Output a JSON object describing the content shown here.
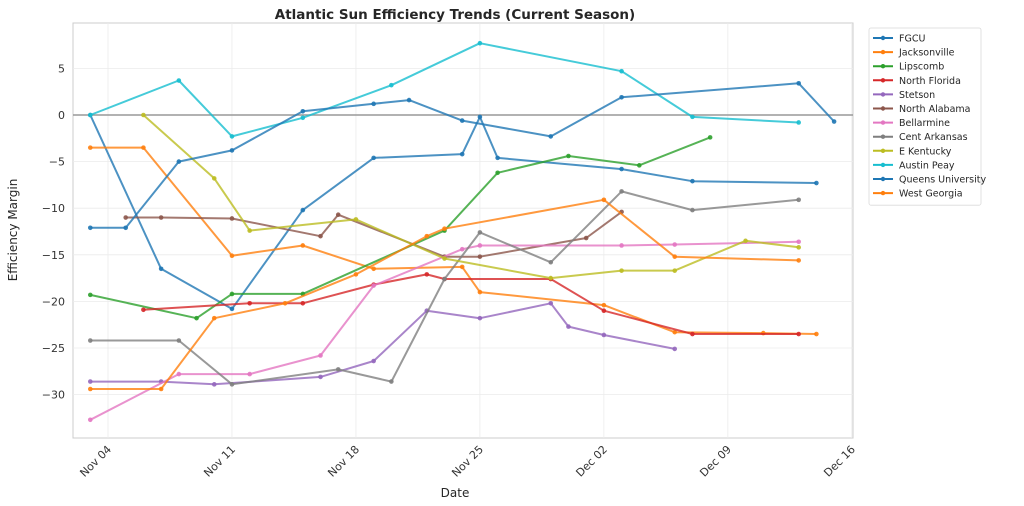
{
  "chart_data": {
    "type": "line",
    "title": "Atlantic Sun Efficiency Trends (Current Season)",
    "xlabel": "Date",
    "ylabel": "Efficiency Margin",
    "x_unit": "days offset from Nov 04",
    "xlim": [
      -2,
      41.8
    ],
    "ylim": [
      -34.5,
      9.9
    ],
    "x_ticks": [
      {
        "pos": 0,
        "label": "Nov 04"
      },
      {
        "pos": 7,
        "label": "Nov 11"
      },
      {
        "pos": 14,
        "label": "Nov 18"
      },
      {
        "pos": 21,
        "label": "Nov 25"
      },
      {
        "pos": 28,
        "label": "Dec 02"
      },
      {
        "pos": 35,
        "label": "Dec 09"
      },
      {
        "pos": 42,
        "label": "Dec 16"
      }
    ],
    "y_ticks": [
      5,
      0,
      -5,
      -10,
      -15,
      -20,
      -25,
      -30
    ],
    "y_tick_labels": [
      "5",
      "0",
      "−5",
      "−10",
      "−15",
      "−20",
      "−25",
      "−30"
    ],
    "reference_line": 0,
    "grid": true,
    "legend_position": "outside-top-right",
    "series": [
      {
        "name": "FGCU",
        "color": "#1f77b4",
        "points": [
          [
            -1,
            0
          ],
          [
            3,
            -16.5
          ],
          [
            7,
            -20.8
          ],
          [
            11,
            -10.2
          ],
          [
            15,
            -4.6
          ],
          [
            20,
            -4.2
          ],
          [
            21,
            -0.2
          ],
          [
            22,
            -4.6
          ],
          [
            29,
            -5.8
          ],
          [
            33,
            -7.1
          ],
          [
            40,
            -7.3
          ]
        ]
      },
      {
        "name": "Jacksonville",
        "color": "#ff7f0e",
        "points": [
          [
            -1,
            -3.5
          ],
          [
            2,
            -3.5
          ],
          [
            7,
            -15.1
          ],
          [
            11,
            -14
          ],
          [
            15,
            -16.5
          ],
          [
            20,
            -16.3
          ],
          [
            21,
            -19
          ],
          [
            28,
            -20.4
          ],
          [
            32,
            -23.3
          ],
          [
            37,
            -23.4
          ],
          [
            40,
            -23.5
          ]
        ]
      },
      {
        "name": "Lipscomb",
        "color": "#2ca02c",
        "points": [
          [
            -1,
            -19.3
          ],
          [
            5,
            -21.8
          ],
          [
            7,
            -19.2
          ],
          [
            11,
            -19.2
          ],
          [
            19,
            -12.4
          ],
          [
            22,
            -6.2
          ],
          [
            26,
            -4.4
          ],
          [
            30,
            -5.4
          ],
          [
            34,
            -2.4
          ]
        ]
      },
      {
        "name": "North Florida",
        "color": "#d62728",
        "points": [
          [
            2,
            -20.9
          ],
          [
            8,
            -20.2
          ],
          [
            11,
            -20.2
          ],
          [
            15,
            -18.2
          ],
          [
            18,
            -17.1
          ],
          [
            19,
            -17.6
          ],
          [
            25,
            -17.6
          ],
          [
            28,
            -21
          ],
          [
            33,
            -23.5
          ],
          [
            39,
            -23.5
          ]
        ]
      },
      {
        "name": "Stetson",
        "color": "#9467bd",
        "points": [
          [
            -1,
            -28.6
          ],
          [
            3,
            -28.6
          ],
          [
            6,
            -28.9
          ],
          [
            12,
            -28.1
          ],
          [
            15,
            -26.4
          ],
          [
            18,
            -21
          ],
          [
            21,
            -21.8
          ],
          [
            25,
            -20.2
          ],
          [
            26,
            -22.7
          ],
          [
            28,
            -23.6
          ],
          [
            32,
            -25.1
          ]
        ]
      },
      {
        "name": "North Alabama",
        "color": "#8c564b",
        "points": [
          [
            1,
            -11
          ],
          [
            3,
            -11
          ],
          [
            7,
            -11.1
          ],
          [
            12,
            -13
          ],
          [
            13,
            -10.7
          ],
          [
            19,
            -15.2
          ],
          [
            21,
            -15.2
          ],
          [
            27,
            -13.2
          ],
          [
            29,
            -10.4
          ]
        ]
      },
      {
        "name": "Bellarmine",
        "color": "#e377c2",
        "points": [
          [
            -1,
            -32.7
          ],
          [
            4,
            -27.8
          ],
          [
            8,
            -27.8
          ],
          [
            12,
            -25.8
          ],
          [
            15,
            -18.3
          ],
          [
            20,
            -14.4
          ],
          [
            21,
            -14
          ],
          [
            29,
            -14
          ],
          [
            32,
            -13.9
          ],
          [
            39,
            -13.6
          ]
        ]
      },
      {
        "name": "Cent Arkansas",
        "color": "#7f7f7f",
        "points": [
          [
            -1,
            -24.2
          ],
          [
            4,
            -24.2
          ],
          [
            7,
            -28.9
          ],
          [
            13,
            -27.3
          ],
          [
            16,
            -28.6
          ],
          [
            19,
            -17.6
          ],
          [
            21,
            -12.6
          ],
          [
            25,
            -15.8
          ],
          [
            29,
            -8.2
          ],
          [
            33,
            -10.2
          ],
          [
            39,
            -9.1
          ]
        ]
      },
      {
        "name": "E Kentucky",
        "color": "#bcbd22",
        "points": [
          [
            2,
            0
          ],
          [
            6,
            -6.8
          ],
          [
            8,
            -12.4
          ],
          [
            14,
            -11.2
          ],
          [
            19,
            -15.4
          ],
          [
            25,
            -17.5
          ],
          [
            29,
            -16.7
          ],
          [
            32,
            -16.7
          ],
          [
            36,
            -13.5
          ],
          [
            39,
            -14.2
          ]
        ]
      },
      {
        "name": "Austin Peay",
        "color": "#17becf",
        "points": [
          [
            -1,
            0
          ],
          [
            4,
            3.7
          ],
          [
            7,
            -2.3
          ],
          [
            11,
            -0.3
          ],
          [
            16,
            3.2
          ],
          [
            21,
            7.7
          ],
          [
            29,
            4.7
          ],
          [
            33,
            -0.2
          ],
          [
            39,
            -0.8
          ]
        ]
      },
      {
        "name": "Queens University",
        "color": "#1f77b4",
        "points": [
          [
            -1,
            -12.1
          ],
          [
            1,
            -12.1
          ],
          [
            4,
            -5
          ],
          [
            7,
            -3.8
          ],
          [
            11,
            0.4
          ],
          [
            15,
            1.2
          ],
          [
            17,
            1.6
          ],
          [
            20,
            -0.6
          ],
          [
            25,
            -2.3
          ],
          [
            29,
            1.9
          ],
          [
            39,
            3.4
          ],
          [
            41,
            -0.7
          ]
        ]
      },
      {
        "name": "West Georgia",
        "color": "#ff7f0e",
        "points": [
          [
            -1,
            -29.4
          ],
          [
            3,
            -29.4
          ],
          [
            6,
            -21.8
          ],
          [
            10,
            -20.2
          ],
          [
            14,
            -17.1
          ],
          [
            18,
            -13
          ],
          [
            19,
            -12.2
          ],
          [
            28,
            -9.1
          ],
          [
            32,
            -15.2
          ],
          [
            39,
            -15.6
          ]
        ]
      }
    ]
  }
}
